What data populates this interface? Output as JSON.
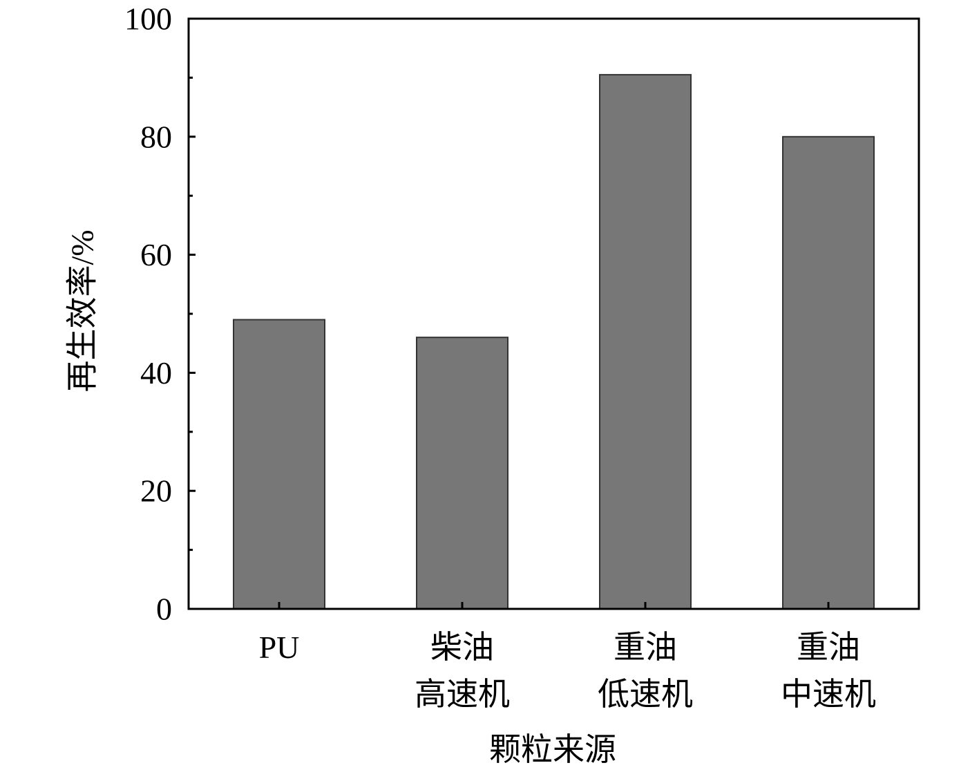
{
  "chart_data": {
    "type": "bar",
    "categories": [
      [
        "PU"
      ],
      [
        "柴油",
        "高速机"
      ],
      [
        "重油",
        "低速机"
      ],
      [
        "重油",
        "中速机"
      ]
    ],
    "values": [
      49,
      46,
      90.5,
      80
    ],
    "xlabel": "颗粒来源",
    "ylabel": "再生效率/%",
    "ylim": [
      0,
      100
    ],
    "yticks": [
      0,
      20,
      40,
      60,
      80,
      100
    ],
    "grid": false,
    "legend": "none",
    "bar_color": "#777777",
    "bar_edge_color": "#333333"
  }
}
